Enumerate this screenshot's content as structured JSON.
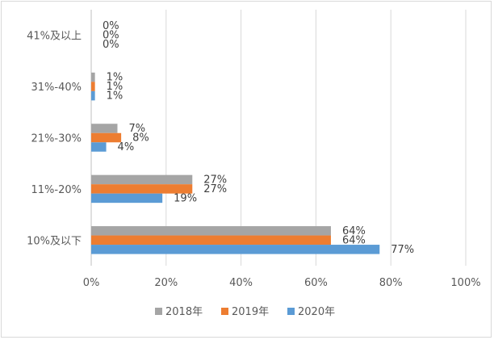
{
  "chart_data": {
    "type": "bar",
    "orientation": "horizontal",
    "categories": [
      "10%及以下",
      "11%-20%",
      "21%-30%",
      "31%-40%",
      "41%及以上"
    ],
    "series": [
      {
        "name": "2018年",
        "color": "#a5a5a5",
        "values": [
          64,
          27,
          7,
          1,
          0
        ],
        "labels": [
          "64%",
          "27%",
          "7%",
          "1%",
          "0%"
        ]
      },
      {
        "name": "2019年",
        "color": "#ed7d31",
        "values": [
          64,
          27,
          8,
          1,
          0
        ],
        "labels": [
          "64%",
          "27%",
          "8%",
          "1%",
          "0%"
        ]
      },
      {
        "name": "2020年",
        "color": "#5b9bd5",
        "values": [
          77,
          19,
          4,
          1,
          0
        ],
        "labels": [
          "77%",
          "19%",
          "4%",
          "1%",
          "0%"
        ]
      }
    ],
    "xlim": [
      0,
      100
    ],
    "xticks": [
      0,
      20,
      40,
      60,
      80,
      100
    ],
    "xtick_labels": [
      "0%",
      "20%",
      "40%",
      "60%",
      "80%",
      "100%"
    ],
    "grid": true,
    "legend_position": "bottom",
    "title": "",
    "xlabel": "",
    "ylabel": ""
  }
}
